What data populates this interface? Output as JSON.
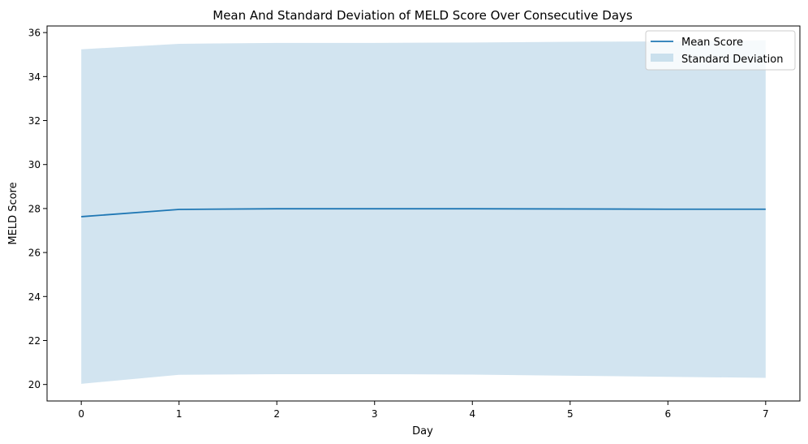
{
  "chart_data": {
    "type": "area",
    "title": "Mean And Standard Deviation of MELD Score Over Consecutive Days",
    "xlabel": "Day",
    "ylabel": "MELD Score",
    "xlim": [
      -0.35,
      7.35
    ],
    "ylim": [
      19.25,
      36.3
    ],
    "xticks": [
      0,
      1,
      2,
      3,
      4,
      5,
      6,
      7
    ],
    "yticks": [
      20,
      22,
      24,
      26,
      28,
      30,
      32,
      34,
      36
    ],
    "grid": false,
    "legend": "upper right",
    "x": [
      0,
      1,
      2,
      3,
      4,
      5,
      6,
      7
    ],
    "series": [
      {
        "name": "Mean Score",
        "kind": "line",
        "color": "#1f77b4",
        "values": [
          27.63,
          27.96,
          27.99,
          27.99,
          27.99,
          27.98,
          27.97,
          27.97
        ]
      },
      {
        "name": "Standard Deviation",
        "kind": "band",
        "color": "#1f77b4",
        "opacity": 0.2,
        "lower": [
          20.03,
          20.44,
          20.47,
          20.47,
          20.45,
          20.4,
          20.35,
          20.3
        ],
        "upper": [
          35.24,
          35.49,
          35.53,
          35.53,
          35.55,
          35.58,
          35.6,
          35.65
        ]
      }
    ]
  }
}
